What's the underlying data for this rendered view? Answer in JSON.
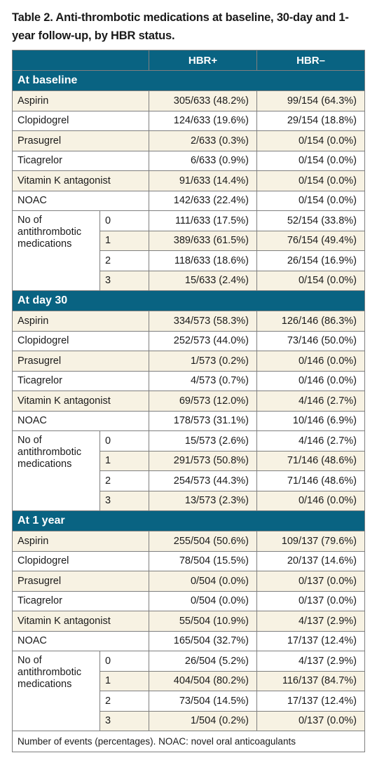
{
  "caption": "Table 2. Anti-thrombotic medications at baseline, 30-day and 1-year follow-up, by HBR status.",
  "columns": [
    "HBR+",
    "HBR–"
  ],
  "colors": {
    "header_bg": "#096382",
    "header_text": "#ffffff",
    "row_shade": "#f7f2e3",
    "border": "#7f7f7f"
  },
  "sections": [
    {
      "title": "At baseline",
      "rows": [
        {
          "label": "Aspirin",
          "hbr_pos": "305/633 (48.2%)",
          "hbr_neg": "99/154 (64.3%)"
        },
        {
          "label": "Clopidogrel",
          "hbr_pos": "124/633 (19.6%)",
          "hbr_neg": "29/154 (18.8%)"
        },
        {
          "label": "Prasugrel",
          "hbr_pos": "2/633 (0.3%)",
          "hbr_neg": "0/154 (0.0%)"
        },
        {
          "label": "Ticagrelor",
          "hbr_pos": "6/633 (0.9%)",
          "hbr_neg": "0/154 (0.0%)"
        },
        {
          "label": "Vitamin K antagonist",
          "hbr_pos": "91/633 (14.4%)",
          "hbr_neg": "0/154 (0.0%)"
        },
        {
          "label": "NOAC",
          "hbr_pos": "142/633 (22.4%)",
          "hbr_neg": "0/154 (0.0%)"
        }
      ],
      "group": {
        "label": "No of antithrombotic medications",
        "rows": [
          {
            "sub": "0",
            "hbr_pos": "111/633 (17.5%)",
            "hbr_neg": "52/154 (33.8%)"
          },
          {
            "sub": "1",
            "hbr_pos": "389/633 (61.5%)",
            "hbr_neg": "76/154 (49.4%)"
          },
          {
            "sub": "2",
            "hbr_pos": "118/633 (18.6%)",
            "hbr_neg": "26/154 (16.9%)"
          },
          {
            "sub": "3",
            "hbr_pos": "15/633 (2.4%)",
            "hbr_neg": "0/154 (0.0%)"
          }
        ]
      }
    },
    {
      "title": "At day 30",
      "rows": [
        {
          "label": "Aspirin",
          "hbr_pos": "334/573 (58.3%)",
          "hbr_neg": "126/146 (86.3%)"
        },
        {
          "label": "Clopidogrel",
          "hbr_pos": "252/573 (44.0%)",
          "hbr_neg": "73/146 (50.0%)"
        },
        {
          "label": "Prasugrel",
          "hbr_pos": "1/573 (0.2%)",
          "hbr_neg": "0/146 (0.0%)"
        },
        {
          "label": "Ticagrelor",
          "hbr_pos": "4/573 (0.7%)",
          "hbr_neg": "0/146 (0.0%)"
        },
        {
          "label": "Vitamin K antagonist",
          "hbr_pos": "69/573 (12.0%)",
          "hbr_neg": "4/146 (2.7%)"
        },
        {
          "label": "NOAC",
          "hbr_pos": "178/573 (31.1%)",
          "hbr_neg": "10/146 (6.9%)"
        }
      ],
      "group": {
        "label": "No of antithrombotic medications",
        "rows": [
          {
            "sub": "0",
            "hbr_pos": "15/573 (2.6%)",
            "hbr_neg": "4/146 (2.7%)"
          },
          {
            "sub": "1",
            "hbr_pos": "291/573 (50.8%)",
            "hbr_neg": "71/146 (48.6%)"
          },
          {
            "sub": "2",
            "hbr_pos": "254/573 (44.3%)",
            "hbr_neg": "71/146 (48.6%)"
          },
          {
            "sub": "3",
            "hbr_pos": "13/573 (2.3%)",
            "hbr_neg": "0/146 (0.0%)"
          }
        ]
      }
    },
    {
      "title": "At 1 year",
      "rows": [
        {
          "label": "Aspirin",
          "hbr_pos": "255/504 (50.6%)",
          "hbr_neg": "109/137 (79.6%)"
        },
        {
          "label": "Clopidogrel",
          "hbr_pos": "78/504 (15.5%)",
          "hbr_neg": "20/137 (14.6%)"
        },
        {
          "label": "Prasugrel",
          "hbr_pos": "0/504 (0.0%)",
          "hbr_neg": "0/137 (0.0%)"
        },
        {
          "label": "Ticagrelor",
          "hbr_pos": "0/504 (0.0%)",
          "hbr_neg": "0/137 (0.0%)"
        },
        {
          "label": "Vitamin K antagonist",
          "hbr_pos": "55/504 (10.9%)",
          "hbr_neg": "4/137 (2.9%)"
        },
        {
          "label": "NOAC",
          "hbr_pos": "165/504 (32.7%)",
          "hbr_neg": "17/137 (12.4%)"
        }
      ],
      "group": {
        "label": "No of antithrombotic medications",
        "rows": [
          {
            "sub": "0",
            "hbr_pos": "26/504 (5.2%)",
            "hbr_neg": "4/137 (2.9%)"
          },
          {
            "sub": "1",
            "hbr_pos": "404/504 (80.2%)",
            "hbr_neg": "116/137 (84.7%)"
          },
          {
            "sub": "2",
            "hbr_pos": "73/504 (14.5%)",
            "hbr_neg": "17/137 (12.4%)"
          },
          {
            "sub": "3",
            "hbr_pos": "1/504 (0.2%)",
            "hbr_neg": "0/137 (0.0%)"
          }
        ]
      }
    }
  ],
  "footnote": "Number of events (percentages). NOAC: novel oral anticoagulants"
}
